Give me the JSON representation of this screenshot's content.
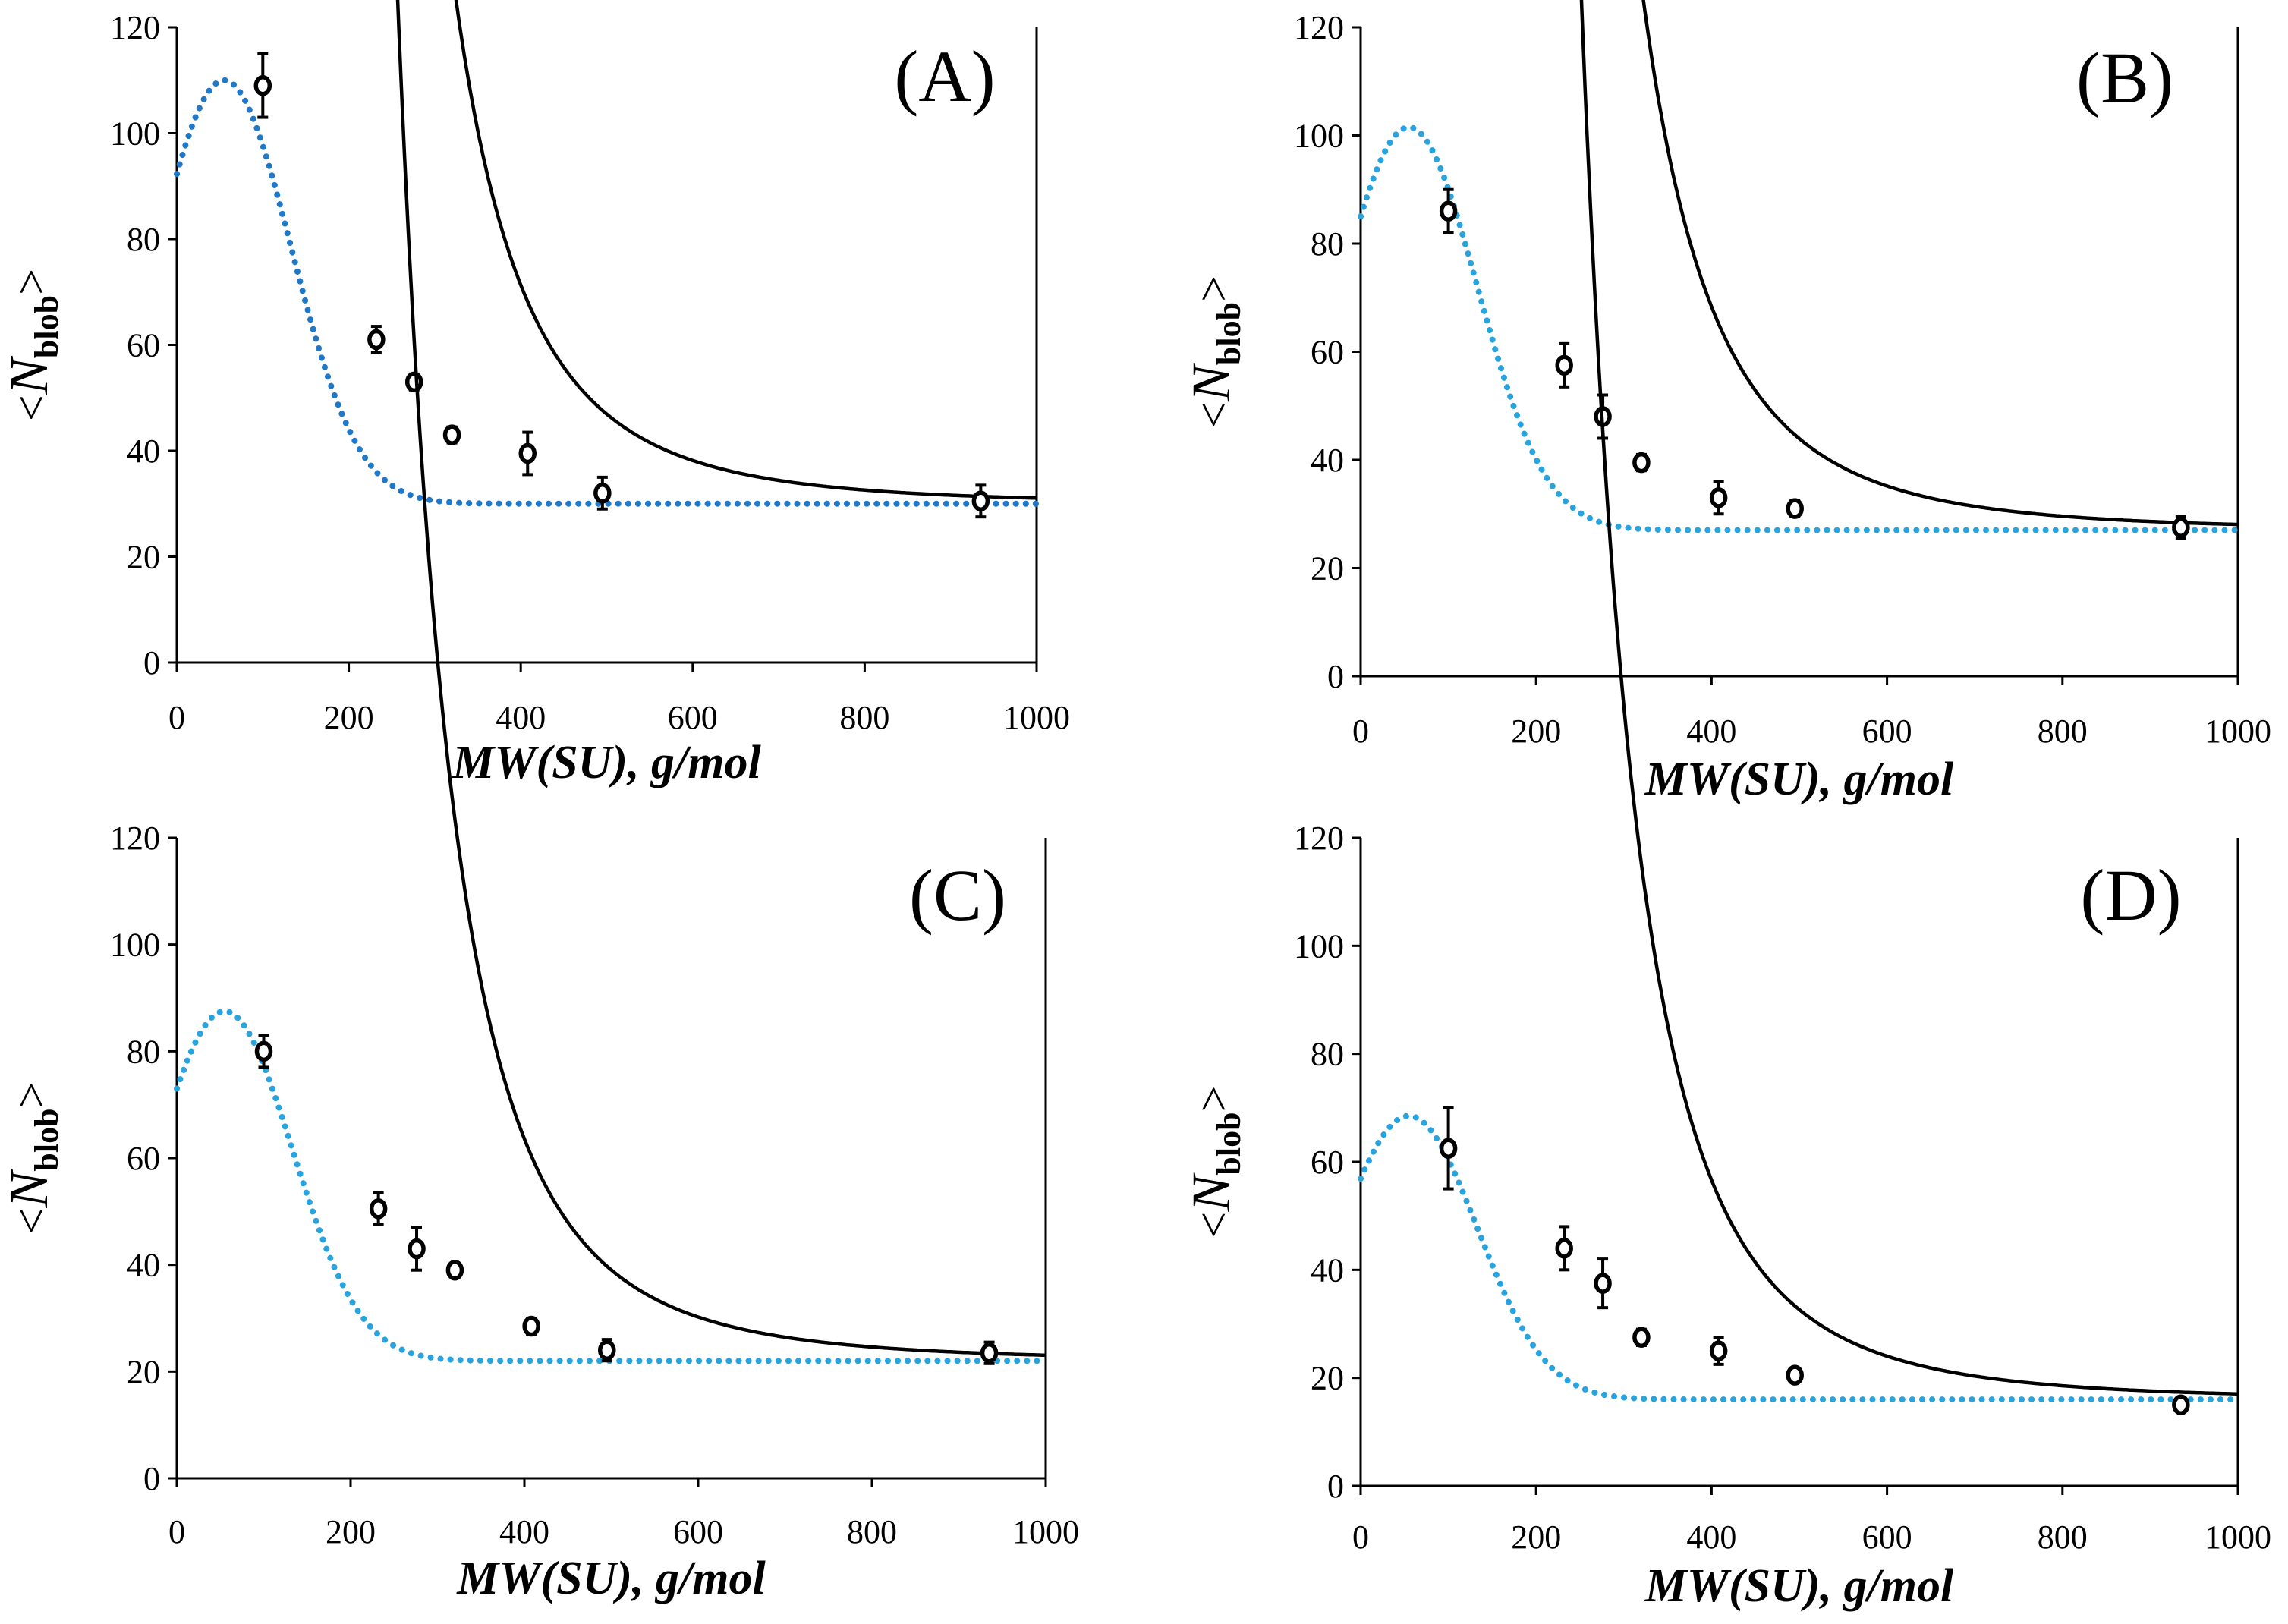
{
  "chart_data": [
    {
      "type": "scatter",
      "panel_label": "(A)",
      "xlabel": "MW(SU), g/mol",
      "ylabel": {
        "left": "<",
        "main": "N",
        "sub": "blob",
        "right": ">"
      },
      "xlim": [
        0,
        1000
      ],
      "ylim": [
        0,
        120
      ],
      "xticks": [
        "0",
        "200",
        "400",
        "600",
        "800",
        "1000"
      ],
      "yticks": [
        "0",
        "20",
        "40",
        "60",
        "80",
        "100",
        "120"
      ],
      "grid": false,
      "series": [
        {
          "name": "data",
          "style": "open-circle",
          "x": [
            100,
            232,
            276,
            320,
            408,
            495,
            935
          ],
          "y": [
            109,
            61,
            53,
            43,
            39.5,
            32,
            30.5
          ],
          "yerr": [
            6,
            2.5,
            1.5,
            1.5,
            4,
            3,
            3
          ]
        },
        {
          "name": "fit-solid",
          "style": "solid",
          "color": "#000000",
          "plateau": 30,
          "amplitude": 10584,
          "power": 4,
          "x_start": 200,
          "x_end": 1000
        },
        {
          "name": "fit-dotted",
          "style": "dotted",
          "color": "#1f78c8",
          "plateau": 30,
          "peak": 110,
          "peak_x": 55,
          "width": 110,
          "x_start": 0,
          "x_end": 1000
        }
      ]
    },
    {
      "type": "scatter",
      "panel_label": "(B)",
      "xlabel": "MW(SU), g/mol",
      "ylabel": {
        "left": "<",
        "main": "N",
        "sub": "blob",
        "right": ">"
      },
      "xlim": [
        0,
        1000
      ],
      "ylim": [
        0,
        120
      ],
      "xticks": [
        "0",
        "200",
        "400",
        "600",
        "800",
        "1000"
      ],
      "yticks": [
        "0",
        "20",
        "40",
        "60",
        "80",
        "100",
        "120"
      ],
      "grid": false,
      "series": [
        {
          "name": "data",
          "style": "open-circle",
          "x": [
            100,
            232,
            276,
            320,
            408,
            495,
            935
          ],
          "y": [
            86,
            57.5,
            48,
            39.5,
            33,
            31,
            27.5
          ],
          "yerr": [
            4,
            4,
            4,
            1.5,
            3,
            1.5,
            2
          ]
        },
        {
          "name": "fit-solid",
          "style": "solid",
          "color": "#000000",
          "plateau": 27,
          "amplitude": 10584,
          "power": 4,
          "x_start": 200,
          "x_end": 1000
        },
        {
          "name": "fit-dotted",
          "style": "dotted",
          "color": "#29a3de",
          "plateau": 27,
          "peak": 101.5,
          "peak_x": 55,
          "width": 110,
          "x_start": 0,
          "x_end": 1000
        }
      ]
    },
    {
      "type": "scatter",
      "panel_label": "(C)",
      "xlabel": "MW(SU), g/mol",
      "ylabel": {
        "left": "<",
        "main": "N",
        "sub": "blob",
        "right": ">"
      },
      "xlim": [
        0,
        1000
      ],
      "ylim": [
        0,
        120
      ],
      "xticks": [
        "0",
        "200",
        "400",
        "600",
        "800",
        "1000"
      ],
      "yticks": [
        "0",
        "20",
        "40",
        "60",
        "80",
        "100",
        "120"
      ],
      "grid": false,
      "series": [
        {
          "name": "data",
          "style": "open-circle",
          "x": [
            100,
            232,
            276,
            320,
            408,
            495,
            935
          ],
          "y": [
            80,
            50.5,
            43,
            39,
            28.5,
            24,
            23.5
          ],
          "yerr": [
            3,
            3,
            4,
            1,
            1.5,
            2,
            2
          ]
        },
        {
          "name": "fit-solid",
          "style": "solid",
          "color": "#000000",
          "plateau": 22,
          "amplitude": 10648,
          "power": 4,
          "x_start": 200,
          "x_end": 1000
        },
        {
          "name": "fit-dotted",
          "style": "dotted",
          "color": "#29a3de",
          "plateau": 22,
          "peak": 87.5,
          "peak_x": 55,
          "width": 110,
          "x_start": 0,
          "x_end": 1000
        }
      ]
    },
    {
      "type": "scatter",
      "panel_label": "(D)",
      "xlabel": "MW(SU), g/mol",
      "ylabel": {
        "left": "<",
        "main": "N",
        "sub": "blob",
        "right": ">"
      },
      "xlim": [
        0,
        1000
      ],
      "ylim": [
        0,
        120
      ],
      "xticks": [
        "0",
        "200",
        "400",
        "600",
        "800",
        "1000"
      ],
      "yticks": [
        "0",
        "20",
        "40",
        "60",
        "80",
        "100",
        "120"
      ],
      "grid": false,
      "series": [
        {
          "name": "data",
          "style": "open-circle",
          "x": [
            100,
            232,
            276,
            320,
            408,
            495,
            935
          ],
          "y": [
            62.5,
            44,
            37.5,
            27.5,
            25,
            20.5,
            15
          ],
          "yerr": [
            7.5,
            4,
            4.5,
            1.5,
            2.5,
            1,
            1
          ]
        },
        {
          "name": "fit-solid",
          "style": "solid",
          "color": "#000000",
          "plateau": 16,
          "amplitude": 10400,
          "power": 4,
          "x_start": 200,
          "x_end": 1000
        },
        {
          "name": "fit-dotted",
          "style": "dotted",
          "color": "#29a3de",
          "plateau": 16,
          "peak": 68.5,
          "peak_x": 55,
          "width": 110,
          "x_start": 0,
          "x_end": 1000
        }
      ]
    }
  ]
}
